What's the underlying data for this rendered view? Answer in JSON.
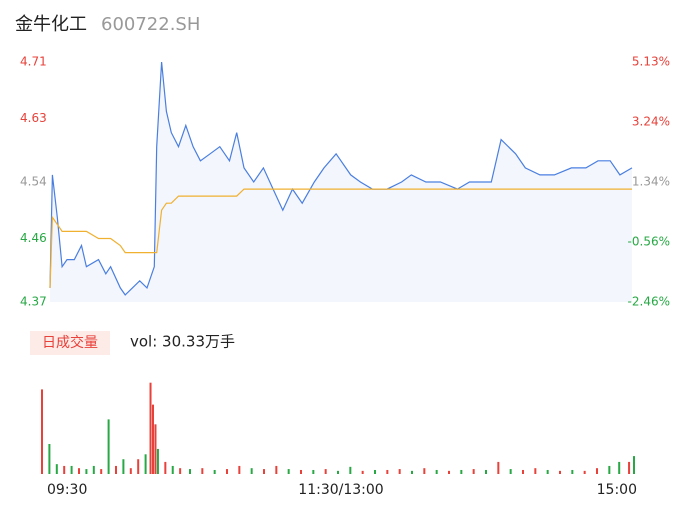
{
  "header": {
    "name": "金牛化工",
    "code": "600722.SH"
  },
  "volume_title": "日成交量",
  "volume_text": "vol: 30.33万手",
  "chart_data": [
    {
      "type": "line",
      "x": [
        0,
        1,
        3,
        5,
        7,
        10,
        13,
        15,
        20,
        23,
        25,
        29,
        31,
        34,
        37,
        40,
        43,
        44,
        46,
        48,
        50,
        53,
        56,
        59,
        62,
        66,
        70,
        74,
        77,
        80,
        84,
        88,
        92,
        96,
        100,
        104,
        109,
        113,
        118,
        124,
        128,
        133,
        139,
        145,
        149,
        155,
        161,
        168,
        173,
        179,
        182,
        186,
        192,
        196,
        202,
        208,
        215,
        221,
        226,
        231,
        235,
        240
      ],
      "series": [
        {
          "color": "#4a7fe0",
          "values": [
            4.39,
            4.55,
            4.49,
            4.42,
            4.43,
            4.43,
            4.45,
            4.42,
            4.43,
            4.41,
            4.42,
            4.39,
            4.38,
            4.39,
            4.4,
            4.39,
            4.42,
            4.59,
            4.71,
            4.64,
            4.61,
            4.59,
            4.62,
            4.59,
            4.57,
            4.58,
            4.59,
            4.57,
            4.61,
            4.56,
            4.54,
            4.56,
            4.53,
            4.5,
            4.53,
            4.51,
            4.54,
            4.56,
            4.58,
            4.55,
            4.54,
            4.53,
            4.53,
            4.54,
            4.55,
            4.54,
            4.54,
            4.53,
            4.54,
            4.54,
            4.54,
            4.6,
            4.58,
            4.56,
            4.55,
            4.55,
            4.56,
            4.56,
            4.57,
            4.57,
            4.55,
            4.56
          ]
        },
        {
          "color": "#f0b030",
          "values": [
            4.39,
            4.49,
            4.48,
            4.47,
            4.47,
            4.47,
            4.47,
            4.47,
            4.46,
            4.46,
            4.46,
            4.45,
            4.44,
            4.44,
            4.44,
            4.44,
            4.44,
            4.44,
            4.5,
            4.51,
            4.51,
            4.52,
            4.52,
            4.52,
            4.52,
            4.52,
            4.52,
            4.52,
            4.52,
            4.53,
            4.53,
            4.53,
            4.53,
            4.53,
            4.53,
            4.53,
            4.53,
            4.53,
            4.53,
            4.53,
            4.53,
            4.53,
            4.53,
            4.53,
            4.53,
            4.53,
            4.53,
            4.53,
            4.53,
            4.53,
            4.53,
            4.53,
            4.53,
            4.53,
            4.53,
            4.53,
            4.53,
            4.53,
            4.53,
            4.53,
            4.53,
            4.53
          ]
        }
      ],
      "xlim": [
        0,
        240
      ],
      "xticks": [
        {
          "value": 0,
          "label": "09:30"
        },
        {
          "value": 120,
          "label": "11:30/13:00"
        },
        {
          "value": 240,
          "label": "15:00"
        }
      ],
      "ylim": [
        4.37,
        4.71
      ],
      "yticks": [
        4.71,
        4.63,
        4.54,
        4.46,
        4.37
      ],
      "y2lim": [
        -2.46,
        5.13
      ],
      "y2ticks": [
        {
          "value": 5.13,
          "label": "5.13%"
        },
        {
          "value": 3.24,
          "label": "3.24%"
        },
        {
          "value": 1.34,
          "label": "1.34%"
        },
        {
          "value": -0.56,
          "label": "-0.56%"
        },
        {
          "value": -2.46,
          "label": "-2.46%"
        }
      ],
      "tick_colors": [
        "#e8413a",
        "#e8413a",
        "#999999",
        "#27a844",
        "#27a844"
      ],
      "area_color": "#f3f6fd"
    },
    {
      "type": "bar",
      "x": [
        0,
        3,
        6,
        9,
        12,
        15,
        18,
        21,
        24,
        27,
        30,
        33,
        36,
        39,
        42,
        44,
        45,
        46,
        47,
        50,
        53,
        56,
        60,
        65,
        70,
        75,
        80,
        85,
        90,
        95,
        100,
        105,
        110,
        115,
        120,
        125,
        130,
        135,
        140,
        145,
        150,
        155,
        160,
        165,
        170,
        175,
        180,
        185,
        190,
        195,
        200,
        205,
        210,
        215,
        220,
        225,
        230,
        234,
        238,
        240
      ],
      "values": [
        18900,
        6700,
        2200,
        1800,
        1800,
        1300,
        1100,
        1800,
        1100,
        12200,
        1800,
        3300,
        1300,
        3300,
        4400,
        20400,
        15500,
        11100,
        5600,
        2700,
        1800,
        1300,
        1100,
        1300,
        900,
        1100,
        1800,
        1300,
        1100,
        1800,
        1100,
        900,
        900,
        1100,
        700,
        1600,
        700,
        900,
        900,
        1100,
        700,
        1300,
        900,
        700,
        900,
        1100,
        900,
        2700,
        1100,
        900,
        1300,
        900,
        700,
        900,
        700,
        1300,
        1800,
        2700,
        2700,
        4000
      ],
      "colors": [
        "#e8413a",
        "#27a844",
        "#27a844",
        "#e8413a",
        "#27a844",
        "#e8413a",
        "#27a844",
        "#27a844",
        "#e8413a",
        "#27a844",
        "#e8413a",
        "#27a844",
        "#e8413a",
        "#e8413a",
        "#27a844",
        "#e8413a",
        "#e8413a",
        "#e8413a",
        "#27a844",
        "#e8413a",
        "#27a844",
        "#e8413a",
        "#27a844",
        "#e8413a",
        "#27a844",
        "#e8413a",
        "#e8413a",
        "#27a844",
        "#e8413a",
        "#e8413a",
        "#27a844",
        "#e8413a",
        "#27a844",
        "#e8413a",
        "#27a844",
        "#27a844",
        "#e8413a",
        "#27a844",
        "#e8413a",
        "#e8413a",
        "#27a844",
        "#e8413a",
        "#27a844",
        "#e8413a",
        "#27a844",
        "#e8413a",
        "#27a844",
        "#e8413a",
        "#27a844",
        "#e8413a",
        "#e8413a",
        "#27a844",
        "#e8413a",
        "#27a844",
        "#e8413a",
        "#e8413a",
        "#27a844",
        "#27a844",
        "#e8413a",
        "#27a844"
      ],
      "xlim": [
        0,
        240
      ],
      "ylim": [
        0,
        21000
      ]
    }
  ]
}
